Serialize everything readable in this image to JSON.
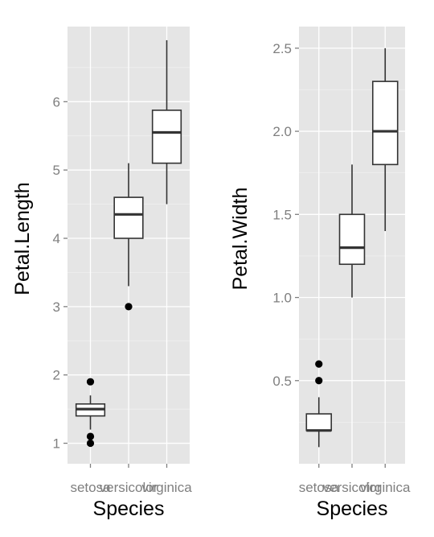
{
  "chart_data": [
    {
      "type": "boxplot",
      "xlabel": "Species",
      "ylabel": "Petal.Length",
      "categories": [
        "setosa",
        "versicolor",
        "virginica"
      ],
      "ylim": [
        0.7,
        7.1
      ],
      "yticks": [
        1,
        2,
        3,
        4,
        5,
        6
      ],
      "yticks_labels": [
        "1",
        "2",
        "3",
        "4",
        "5",
        "6"
      ],
      "boxes": [
        {
          "category": "setosa",
          "whisker_low": 1.2,
          "q1": 1.4,
          "median": 1.5,
          "q3": 1.575,
          "whisker_high": 1.7,
          "outliers": [
            1.9,
            1.1,
            1.0
          ]
        },
        {
          "category": "versicolor",
          "whisker_low": 3.3,
          "q1": 4.0,
          "median": 4.35,
          "q3": 4.6,
          "whisker_high": 5.1,
          "outliers": [
            3.0
          ]
        },
        {
          "category": "virginica",
          "whisker_low": 4.5,
          "q1": 5.1,
          "median": 5.55,
          "q3": 5.875,
          "whisker_high": 6.9,
          "outliers": []
        }
      ],
      "grid": true
    },
    {
      "type": "boxplot",
      "xlabel": "Species",
      "ylabel": "Petal.Width",
      "categories": [
        "setosa",
        "versicolor",
        "virginica"
      ],
      "ylim": [
        0.0,
        2.63
      ],
      "yticks": [
        0.5,
        1.0,
        1.5,
        2.0,
        2.5
      ],
      "yticks_labels": [
        "0.5",
        "1.0",
        "1.5",
        "2.0",
        "2.5"
      ],
      "boxes": [
        {
          "category": "setosa",
          "whisker_low": 0.1,
          "q1": 0.2,
          "median": 0.2,
          "q3": 0.3,
          "whisker_high": 0.4,
          "outliers": [
            0.6,
            0.5
          ]
        },
        {
          "category": "versicolor",
          "whisker_low": 1.0,
          "q1": 1.2,
          "median": 1.3,
          "q3": 1.5,
          "whisker_high": 1.8,
          "outliers": []
        },
        {
          "category": "virginica",
          "whisker_low": 1.4,
          "q1": 1.8,
          "median": 2.0,
          "q3": 2.3,
          "whisker_high": 2.5,
          "outliers": []
        }
      ],
      "grid": true
    }
  ],
  "colors": {
    "panel": "#e5e5e5",
    "grid_major": "#ffffff",
    "grid_minor": "#f2f2f2",
    "box_fill": "#ffffff",
    "box_stroke": "#333333",
    "outlier": "#000000",
    "tick_text": "#7f7f7f"
  }
}
